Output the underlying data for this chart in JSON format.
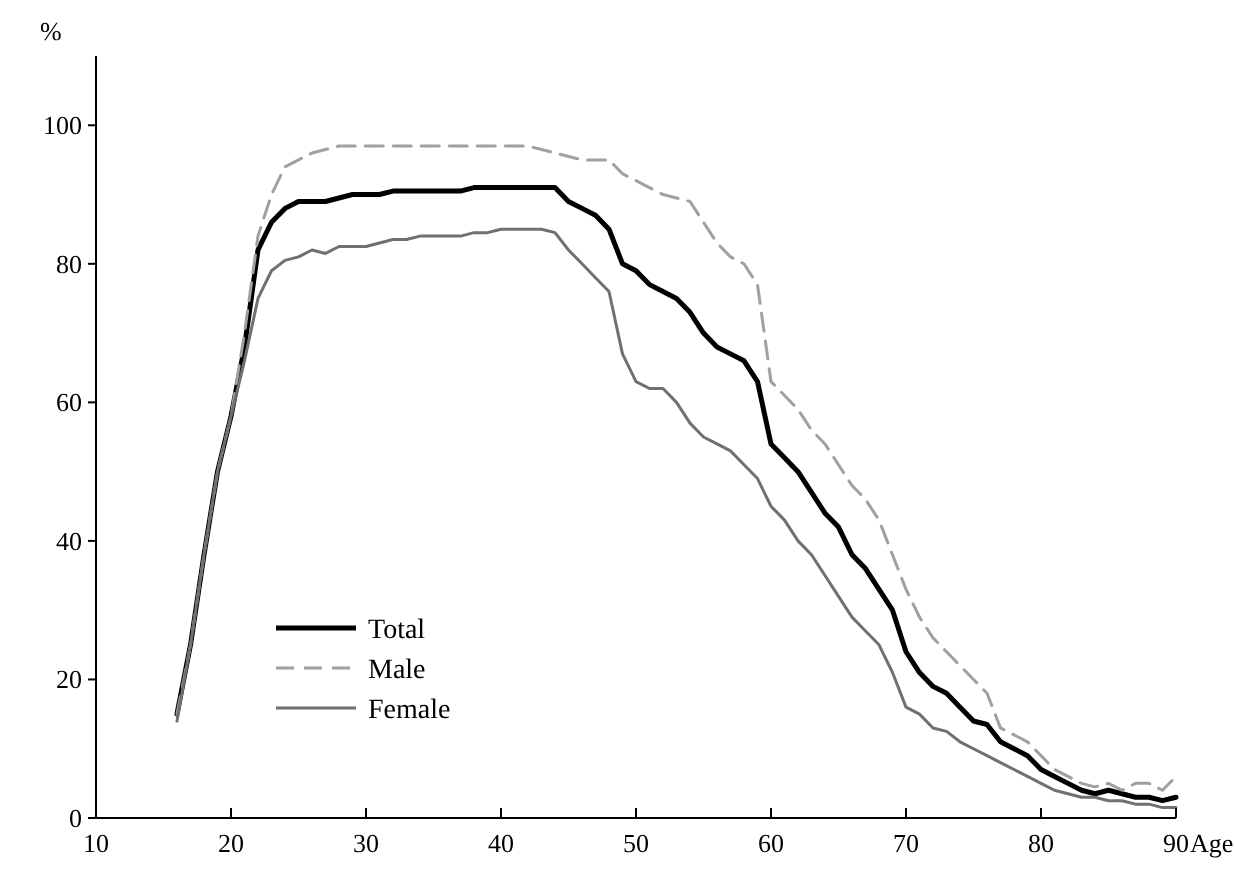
{
  "chart_data": {
    "type": "line",
    "xlabel": "Age",
    "ylabel": "%",
    "x": [
      16,
      17,
      18,
      19,
      20,
      21,
      22,
      23,
      24,
      25,
      26,
      27,
      28,
      29,
      30,
      31,
      32,
      33,
      34,
      35,
      36,
      37,
      38,
      39,
      40,
      41,
      42,
      43,
      44,
      45,
      46,
      47,
      48,
      49,
      50,
      51,
      52,
      53,
      54,
      55,
      56,
      57,
      58,
      59,
      60,
      61,
      62,
      63,
      64,
      65,
      66,
      67,
      68,
      69,
      70,
      71,
      72,
      73,
      74,
      75,
      76,
      77,
      78,
      79,
      80,
      81,
      82,
      83,
      84,
      85,
      86,
      87,
      88,
      89,
      90
    ],
    "series": [
      {
        "name": "Total",
        "color": "#000000",
        "line_style": "solid",
        "values": [
          15,
          25,
          38,
          50,
          58,
          68,
          82,
          86,
          88,
          89,
          89,
          89,
          89.5,
          90,
          90,
          90,
          90.5,
          90.5,
          90.5,
          90.5,
          90.5,
          90.5,
          91,
          91,
          91,
          91,
          91,
          91,
          91,
          89,
          88,
          87,
          85,
          80,
          79,
          77,
          76,
          75,
          73,
          70,
          68,
          67,
          66,
          63,
          54,
          52,
          50,
          47,
          44,
          42,
          38,
          36,
          33,
          30,
          24,
          21,
          19,
          18,
          16,
          14,
          13.5,
          11,
          10,
          9,
          7,
          6,
          5,
          4,
          3.5,
          4,
          3.5,
          3,
          3,
          2.5,
          3
        ]
      },
      {
        "name": "Male",
        "color": "#a0a0a0",
        "line_style": "dashed",
        "values": [
          15,
          25,
          38,
          50,
          58,
          70,
          84,
          90,
          94,
          95,
          96,
          96.5,
          97,
          97,
          97,
          97,
          97,
          97,
          97,
          97,
          97,
          97,
          97,
          97,
          97,
          97,
          97,
          96.5,
          96,
          95.5,
          95,
          95,
          95,
          93,
          92,
          91,
          90,
          89.5,
          89,
          86,
          83,
          81,
          80,
          77,
          63,
          61,
          59,
          56,
          54,
          51,
          48,
          46,
          43,
          38,
          33,
          29,
          26,
          24,
          22,
          20,
          18,
          13,
          12,
          11,
          9,
          7,
          6,
          5,
          4.5,
          5,
          4,
          5,
          5,
          4,
          6
        ]
      },
      {
        "name": "Female",
        "color": "#707070",
        "line_style": "solid",
        "values": [
          14,
          25,
          38,
          50,
          58,
          66,
          75,
          79,
          80.5,
          81,
          82,
          81.5,
          82.5,
          82.5,
          82.5,
          83,
          83.5,
          83.5,
          84,
          84,
          84,
          84,
          84.5,
          84.5,
          85,
          85,
          85,
          85,
          84.5,
          82,
          80,
          78,
          76,
          67,
          63,
          62,
          62,
          60,
          57,
          55,
          54,
          53,
          51,
          49,
          45,
          43,
          40,
          38,
          35,
          32,
          29,
          27,
          25,
          21,
          16,
          15,
          13,
          12.5,
          11,
          10,
          9,
          8,
          7,
          6,
          5,
          4,
          3.5,
          3,
          3,
          2.5,
          2.5,
          2,
          2,
          1.5,
          1.5
        ]
      }
    ],
    "xlim": [
      10,
      90
    ],
    "xticks": [
      10,
      20,
      30,
      40,
      50,
      60,
      70,
      80,
      90
    ],
    "ylim": [
      0,
      110
    ],
    "yticks": [
      0,
      20,
      40,
      60,
      80,
      100
    ],
    "grid": false,
    "legend": "bottom left"
  }
}
